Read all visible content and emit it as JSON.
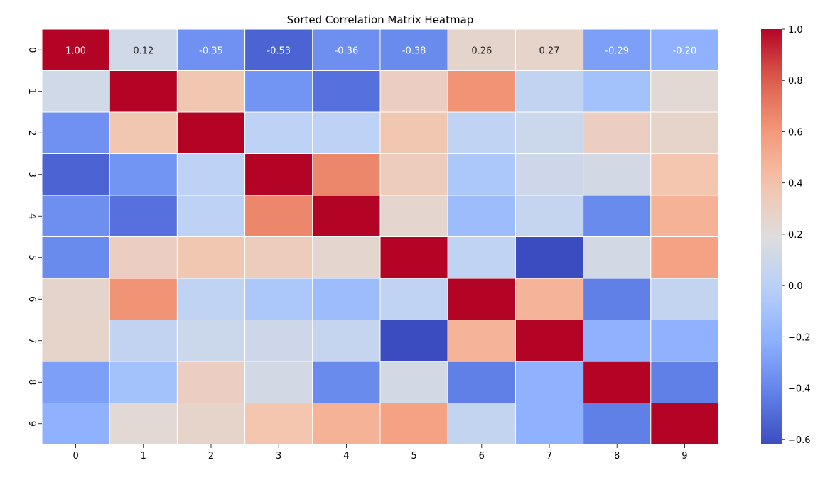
{
  "chart_data": {
    "type": "heatmap",
    "title": "Sorted Correlation Matrix Heatmap",
    "xlabel": "",
    "ylabel": "",
    "x_labels": [
      "0",
      "1",
      "2",
      "3",
      "4",
      "5",
      "6",
      "7",
      "8",
      "9"
    ],
    "y_labels": [
      "0",
      "1",
      "2",
      "3",
      "4",
      "5",
      "6",
      "7",
      "8",
      "9"
    ],
    "colormap": "coolwarm",
    "vmin": -0.62,
    "vmax": 1.0,
    "annotated_rows": [
      0
    ],
    "annotation_format": "0.00",
    "matrix": [
      [
        1.0,
        0.12,
        -0.35,
        -0.53,
        -0.36,
        -0.38,
        0.26,
        0.27,
        -0.29,
        -0.2
      ],
      [
        0.12,
        1.0,
        0.37,
        -0.34,
        -0.48,
        0.31,
        0.62,
        0.04,
        -0.11,
        0.23
      ],
      [
        -0.35,
        0.37,
        1.0,
        0.02,
        0.02,
        0.37,
        0.03,
        0.09,
        0.31,
        0.27
      ],
      [
        -0.53,
        -0.34,
        0.02,
        1.0,
        0.66,
        0.33,
        -0.07,
        0.1,
        0.13,
        0.38
      ],
      [
        -0.36,
        -0.48,
        0.02,
        0.66,
        1.0,
        0.25,
        -0.14,
        0.06,
        -0.38,
        0.48
      ],
      [
        -0.38,
        0.31,
        0.37,
        0.33,
        0.25,
        1.0,
        0.03,
        -0.62,
        0.13,
        0.56
      ],
      [
        0.26,
        0.62,
        0.03,
        -0.07,
        -0.14,
        0.03,
        1.0,
        0.47,
        -0.43,
        0.05
      ],
      [
        0.27,
        0.04,
        0.09,
        0.1,
        0.06,
        -0.62,
        0.47,
        1.0,
        -0.2,
        -0.2
      ],
      [
        -0.29,
        -0.11,
        0.31,
        0.13,
        -0.38,
        0.13,
        -0.43,
        -0.2,
        1.0,
        -0.43
      ],
      [
        -0.2,
        0.23,
        0.27,
        0.38,
        0.48,
        0.56,
        0.05,
        -0.2,
        -0.43,
        1.0
      ]
    ],
    "colorbar": {
      "ticks": [
        1.0,
        0.8,
        0.6,
        0.4,
        0.2,
        0.0,
        -0.2,
        -0.4,
        -0.6
      ],
      "tick_labels": [
        "1.0",
        "0.8",
        "0.6",
        "0.4",
        "0.2",
        "0.0",
        "−0.2",
        "−0.4",
        "−0.6"
      ],
      "placement": "right"
    },
    "grid": false
  }
}
